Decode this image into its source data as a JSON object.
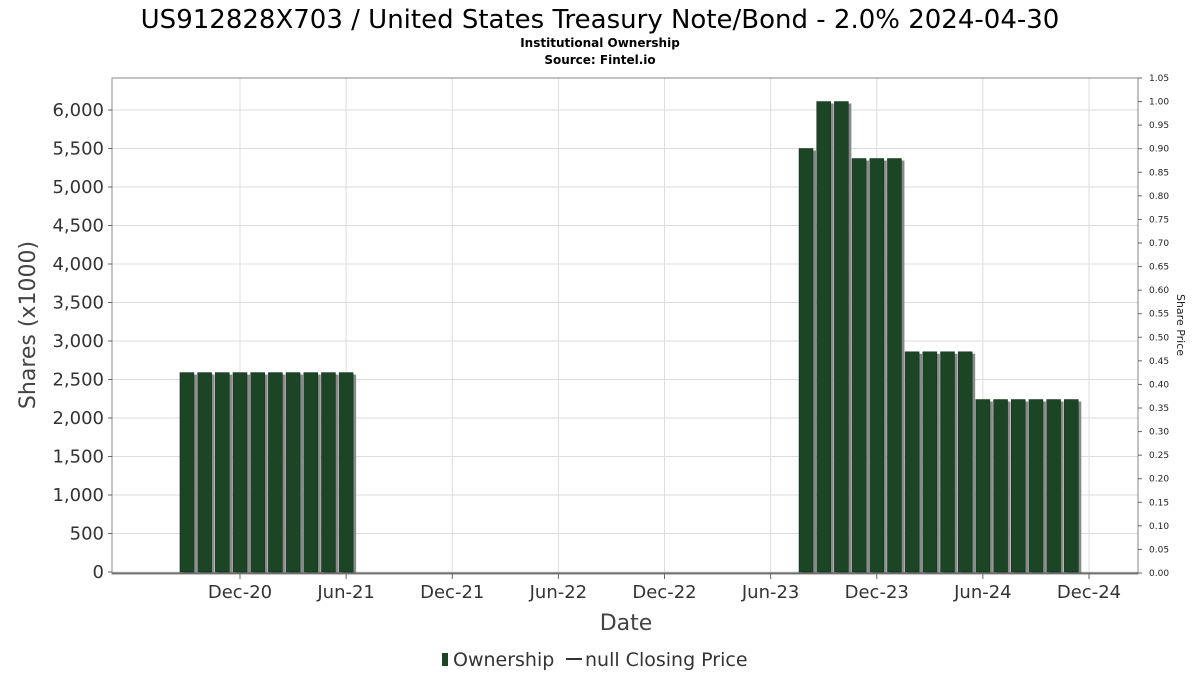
{
  "chart_data": {
    "type": "bar",
    "title": "US912828X703 / United States Treasury Note/Bond - 2.0% 2024-04-30",
    "subtitle": "Institutional Ownership",
    "source": "Source: Fintel.io",
    "xlabel": "Date",
    "ylabel": "Shares (x1000)",
    "y2label": "Share Price",
    "ylim": [
      0,
      6300
    ],
    "y2lim": [
      0,
      1.05
    ],
    "yticks": [
      "0",
      "500",
      "1,000",
      "1,500",
      "2,000",
      "2,500",
      "3,000",
      "3,500",
      "4,000",
      "4,500",
      "5,000",
      "5,500",
      "6,000"
    ],
    "y2ticks": [
      "0.00",
      "0.05",
      "0.10",
      "0.15",
      "0.20",
      "0.25",
      "0.30",
      "0.35",
      "0.40",
      "0.45",
      "0.50",
      "0.55",
      "0.60",
      "0.65",
      "0.70",
      "0.75",
      "0.80",
      "0.85",
      "0.90",
      "0.95",
      "1.00",
      "1.05"
    ],
    "xticks": [
      "Dec-20",
      "Jun-21",
      "Dec-21",
      "Jun-22",
      "Dec-22",
      "Jun-23",
      "Dec-23",
      "Jun-24",
      "Dec-24"
    ],
    "grid": true,
    "legend_position": "bottom",
    "series": [
      {
        "name": "Ownership",
        "color": "#1c4526",
        "points": [
          {
            "date": "2020-09",
            "value": 2590
          },
          {
            "date": "2020-10",
            "value": 2590
          },
          {
            "date": "2020-11",
            "value": 2590
          },
          {
            "date": "2020-12",
            "value": 2590
          },
          {
            "date": "2021-01",
            "value": 2590
          },
          {
            "date": "2021-02",
            "value": 2590
          },
          {
            "date": "2021-03",
            "value": 2590
          },
          {
            "date": "2021-04",
            "value": 2590
          },
          {
            "date": "2021-05",
            "value": 2590
          },
          {
            "date": "2021-06",
            "value": 2590
          },
          {
            "date": "2023-08",
            "value": 5500
          },
          {
            "date": "2023-09",
            "value": 6110
          },
          {
            "date": "2023-10",
            "value": 6110
          },
          {
            "date": "2023-11",
            "value": 5370
          },
          {
            "date": "2023-12",
            "value": 5370
          },
          {
            "date": "2024-01",
            "value": 5370
          },
          {
            "date": "2024-02",
            "value": 2860
          },
          {
            "date": "2024-03",
            "value": 2860
          },
          {
            "date": "2024-04",
            "value": 2860
          },
          {
            "date": "2024-05",
            "value": 2860
          },
          {
            "date": "2024-06",
            "value": 2240
          },
          {
            "date": "2024-07",
            "value": 2240
          },
          {
            "date": "2024-08",
            "value": 2240
          },
          {
            "date": "2024-09",
            "value": 2240
          },
          {
            "date": "2024-10",
            "value": 2240
          },
          {
            "date": "2024-11",
            "value": 2240
          }
        ]
      },
      {
        "name": "null Closing Price",
        "color": "#333333",
        "points": []
      }
    ]
  }
}
